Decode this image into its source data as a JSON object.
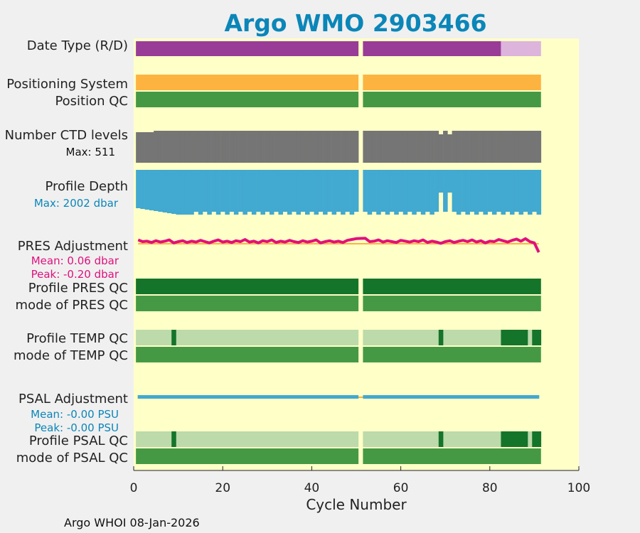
{
  "title": "Argo WMO 2903466",
  "footer": "Argo WHOI 08-Jan-2026",
  "colors": {
    "background": "#f0f0f0",
    "plot_bg": "#ffffc8",
    "title": "#0b86b8",
    "realtime": "#983c98",
    "delayed": "#dcb4dc",
    "positioning": "#fdb33f",
    "qc_good": "#459945",
    "qc_dark": "#14742a",
    "qc_light": "#bcdaaa",
    "ctd": "#757575",
    "depth": "#42a9d0",
    "pres_adj": "#e0107c",
    "psal_adj": "#42a9d0",
    "stat_blue": "#0b86b8",
    "stat_magenta": "#e0107c"
  },
  "rows": {
    "date_type": "Date Type (R/D)",
    "positioning": "Positioning System",
    "position_qc": "Position QC",
    "ctd_levels": "Number CTD levels",
    "ctd_max": "Max: 511",
    "profile_depth": "Profile Depth",
    "depth_max": "Max: 2002 dbar",
    "pres_adj": "PRES Adjustment",
    "pres_mean": "Mean: 0.06 dbar",
    "pres_peak": "Peak: -0.20 dbar",
    "profile_pres_qc": "Profile PRES QC",
    "mode_pres_qc": "mode of PRES QC",
    "profile_temp_qc": "Profile TEMP QC",
    "mode_temp_qc": "mode of TEMP QC",
    "psal_adj": "PSAL Adjustment",
    "psal_mean": "Mean: -0.00 PSU",
    "psal_peak": "Peak: -0.00 PSU",
    "profile_psal_qc": "Profile PSAL QC",
    "mode_psal_qc": "mode of PSAL QC"
  },
  "chart_data": {
    "type": "bar",
    "title": "Argo WMO 2903466",
    "xlabel": "Cycle Number",
    "ylabel": "",
    "xlim": [
      0,
      100
    ],
    "xticks": [
      0,
      20,
      40,
      60,
      80,
      100
    ],
    "cycles": {
      "first": 1,
      "last": 91,
      "missing": [
        51
      ]
    },
    "date_type": {
      "realtime_last_cycle": 82,
      "delayed_cycles": [
        83,
        91
      ]
    },
    "ctd_levels": {
      "max": 511,
      "reduced_cycles": [
        69,
        71
      ]
    },
    "profile_depth": {
      "max_dbar": 2002,
      "shallow_cycles": [
        69,
        71
      ]
    },
    "pres_adjustment": {
      "mean": 0.06,
      "peak": -0.2,
      "unit": "dbar",
      "values": [
        0.09,
        0.05,
        0.06,
        0.03,
        0.07,
        0.04,
        0.06,
        0.09,
        0.02,
        0.05,
        0.07,
        0.03,
        0.06,
        0.04,
        0.08,
        0.05,
        0.02,
        0.06,
        0.09,
        0.04,
        0.06,
        0.03,
        0.07,
        0.05,
        0.1,
        0.04,
        0.06,
        0.02,
        0.07,
        0.05,
        0.09,
        0.03,
        0.06,
        0.04,
        0.08,
        0.05,
        0.03,
        0.07,
        0.04,
        0.06,
        0.09,
        0.02,
        0.05,
        0.07,
        0.04,
        0.06,
        0.03,
        0.08,
        0.1,
        0.12,
        0.11,
        0.13,
        0.05,
        0.06,
        0.09,
        0.04,
        0.07,
        0.05,
        0.03,
        0.08,
        0.06,
        0.04,
        0.07,
        0.05,
        0.09,
        0.03,
        0.06,
        0.04,
        0.01,
        0.05,
        0.07,
        0.03,
        0.06,
        0.08,
        0.05,
        0.09,
        0.04,
        0.07,
        0.02,
        0.06,
        0.05,
        0.1,
        0.07,
        0.04,
        0.08,
        0.11,
        0.06,
        0.12,
        0.05,
        0.02,
        -0.2
      ]
    },
    "psal_adjustment": {
      "mean": -0.0,
      "peak": -0.0,
      "unit": "PSU"
    },
    "profile_qc_temp": {
      "dark_cycles": [
        9,
        69,
        83,
        84,
        85,
        86,
        87,
        88,
        90,
        91
      ]
    },
    "profile_qc_psal": {
      "dark_cycles": [
        9,
        69,
        83,
        84,
        85,
        86,
        87,
        88,
        90,
        91
      ]
    },
    "profile_qc_pres": {
      "all": "A"
    }
  }
}
